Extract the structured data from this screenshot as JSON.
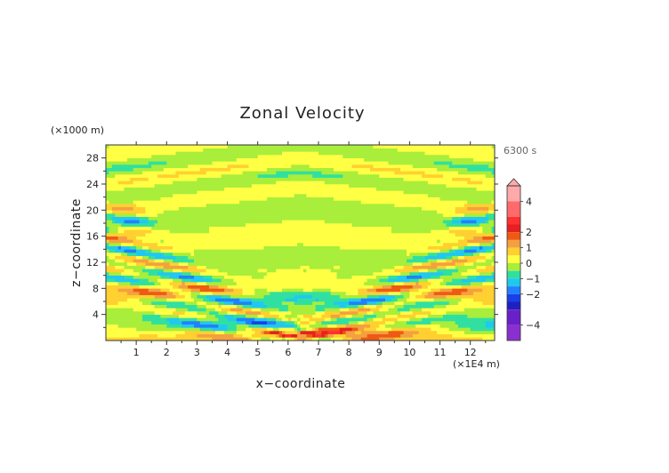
{
  "chart_data": {
    "type": "heatmap",
    "title": "Zonal Velocity",
    "xlabel": "x−coordinate",
    "ylabel": "z−coordinate",
    "x_unit": "(×1E4 m)",
    "y_unit": "(×1000 m)",
    "time_label": "6300 s",
    "xlim": [
      0,
      12.8
    ],
    "ylim": [
      0,
      30
    ],
    "x_ticks": [
      {
        "value": 1,
        "label": "1"
      },
      {
        "value": 2,
        "label": "2"
      },
      {
        "value": 3,
        "label": "3"
      },
      {
        "value": 4,
        "label": "4"
      },
      {
        "value": 5,
        "label": "5"
      },
      {
        "value": 6,
        "label": "6"
      },
      {
        "value": 7,
        "label": "7"
      },
      {
        "value": 8,
        "label": "8"
      },
      {
        "value": 9,
        "label": "9"
      },
      {
        "value": 10,
        "label": "10"
      },
      {
        "value": 11,
        "label": "11"
      },
      {
        "value": 12,
        "label": "12"
      }
    ],
    "y_ticks": [
      {
        "value": 4,
        "label": "4"
      },
      {
        "value": 8,
        "label": "8"
      },
      {
        "value": 12,
        "label": "12"
      },
      {
        "value": 16,
        "label": "16"
      },
      {
        "value": 20,
        "label": "20"
      },
      {
        "value": 24,
        "label": "24"
      },
      {
        "value": 28,
        "label": "28"
      }
    ],
    "colorbar": {
      "range": [
        -5,
        5
      ],
      "tick_labels": [
        {
          "value": 4,
          "label": "4"
        },
        {
          "value": 2,
          "label": "2"
        },
        {
          "value": 1,
          "label": "1"
        },
        {
          "value": 0,
          "label": "0"
        },
        {
          "value": -1,
          "label": "−1"
        },
        {
          "value": -2,
          "label": "−2"
        },
        {
          "value": -4,
          "label": "−4"
        }
      ],
      "levels": [
        {
          "from": 4,
          "to": 5,
          "color": "#ffaaaa"
        },
        {
          "from": 3,
          "to": 4,
          "color": "#ff6a6a"
        },
        {
          "from": 2.5,
          "to": 3,
          "color": "#ff3030"
        },
        {
          "from": 2,
          "to": 2.5,
          "color": "#e62020"
        },
        {
          "from": 1.5,
          "to": 2,
          "color": "#ee5a14"
        },
        {
          "from": 1,
          "to": 1.5,
          "color": "#f4a040"
        },
        {
          "from": 0.5,
          "to": 1,
          "color": "#ffd030"
        },
        {
          "from": 0,
          "to": 0.5,
          "color": "#ffff44"
        },
        {
          "from": -0.5,
          "to": 0,
          "color": "#a8ee3a"
        },
        {
          "from": -1,
          "to": -0.5,
          "color": "#30e0a0"
        },
        {
          "from": -1.5,
          "to": -1,
          "color": "#20c8f0"
        },
        {
          "from": -2,
          "to": -1.5,
          "color": "#2080ff"
        },
        {
          "from": -2.5,
          "to": -2,
          "color": "#1840e8"
        },
        {
          "from": -3,
          "to": -2.5,
          "color": "#2020c0"
        },
        {
          "from": -4,
          "to": -3,
          "color": "#6a20c8"
        },
        {
          "from": -5,
          "to": -4,
          "color": "#8a30d0"
        }
      ]
    },
    "field_description": "Approximate zonal velocity field from a mountain-wave simulation; banded wave structure radiating upward and outward from the center near x=6.4, plus alternating layers near the surface.",
    "samples": [
      {
        "x": 0.5,
        "z": 17.5,
        "u": 2.5
      },
      {
        "x": 0.5,
        "z": 14.5,
        "u": -1.5
      },
      {
        "x": 0.5,
        "z": 10.0,
        "u": 1.0
      },
      {
        "x": 1.3,
        "z": 19.5,
        "u": -1.5
      },
      {
        "x": 1.5,
        "z": 4.5,
        "u": 1.0
      },
      {
        "x": 2.0,
        "z": 8.0,
        "u": -0.8
      },
      {
        "x": 6.4,
        "z": 25.0,
        "u": 0.0
      },
      {
        "x": 7.5,
        "z": 7.5,
        "u": -1.0
      },
      {
        "x": 11.5,
        "z": 17.0,
        "u": -1.5
      },
      {
        "x": 12.2,
        "z": 15.5,
        "u": 2.0
      },
      {
        "x": 11.0,
        "z": 4.0,
        "u": -1.0
      },
      {
        "x": 10.5,
        "z": 7.5,
        "u": 1.0
      }
    ]
  }
}
